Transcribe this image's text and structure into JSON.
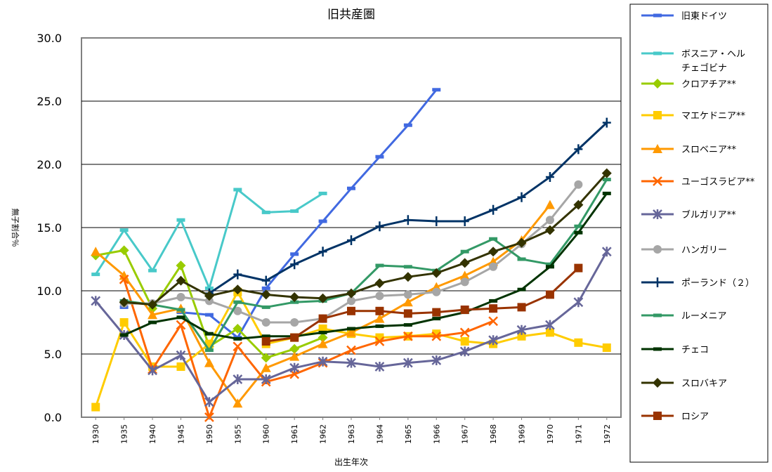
{
  "chart_data": {
    "type": "line",
    "title": "旧共産圏",
    "xlabel": "出生年次",
    "ylabel": "無子割合％",
    "ylim": [
      0,
      30
    ],
    "yticks": [
      "0.0",
      "5.0",
      "10.0",
      "15.0",
      "20.0",
      "25.0",
      "30.0"
    ],
    "categories": [
      "1930",
      "1935",
      "1940",
      "1945",
      "1950",
      "1955",
      "1960",
      "1961",
      "1962",
      "1963",
      "1964",
      "1965",
      "1966",
      "1967",
      "1968",
      "1969",
      "1970",
      "1971",
      "1972"
    ],
    "grid": true,
    "legend_position": "right",
    "series": [
      {
        "name": "旧東ドイツ",
        "color": "#4169e1",
        "marker": "dash",
        "values": [
          null,
          8.7,
          null,
          8.3,
          8.1,
          6.3,
          10.2,
          12.9,
          15.5,
          18.1,
          20.6,
          23.1,
          25.9,
          null,
          null,
          null,
          null,
          null,
          null
        ]
      },
      {
        "name": "ボスニア・ヘルチェゴビナ",
        "color": "#48c9c9",
        "marker": "dash",
        "values": [
          11.3,
          14.8,
          11.6,
          15.6,
          10.2,
          18.0,
          16.2,
          16.3,
          17.7,
          null,
          null,
          null,
          null,
          null,
          null,
          null,
          null,
          null,
          null
        ]
      },
      {
        "name": "クロアチア**",
        "color": "#99cc00",
        "marker": "diamond",
        "values": [
          12.8,
          13.2,
          8.6,
          12.0,
          5.6,
          7.0,
          4.7,
          5.4,
          6.3,
          null,
          null,
          null,
          null,
          null,
          null,
          null,
          null,
          null,
          null
        ]
      },
      {
        "name": "マエケドニア**",
        "color": "#ffcc00",
        "marker": "square",
        "values": [
          0.8,
          7.5,
          4.0,
          4.0,
          5.8,
          9.9,
          5.8,
          6.3,
          7.0,
          6.6,
          6.3,
          6.4,
          6.6,
          6.0,
          5.8,
          6.4,
          6.7,
          5.9,
          5.5
        ]
      },
      {
        "name": "スロベニア**",
        "color": "#ff9900",
        "marker": "triangle",
        "values": [
          13.1,
          11.2,
          8.1,
          8.6,
          4.3,
          1.1,
          3.9,
          4.8,
          5.8,
          6.7,
          7.8,
          9.1,
          10.3,
          11.2,
          12.3,
          14.0,
          16.8,
          null,
          null
        ]
      },
      {
        "name": "ユーゴスラビア**",
        "color": "#ff6600",
        "marker": "x",
        "values": [
          null,
          10.9,
          3.8,
          7.3,
          0.0,
          5.6,
          2.8,
          3.4,
          4.3,
          5.3,
          6.0,
          6.4,
          6.4,
          6.7,
          7.6,
          null,
          null,
          null,
          null
        ]
      },
      {
        "name": "ブルガリア**",
        "color": "#666699",
        "marker": "star",
        "values": [
          9.2,
          6.5,
          3.7,
          4.9,
          1.2,
          3.0,
          3.0,
          3.9,
          4.4,
          4.3,
          4.0,
          4.3,
          4.5,
          5.2,
          6.1,
          6.9,
          7.3,
          9.1,
          13.1
        ]
      },
      {
        "name": "ハンガリー",
        "color": "#a6a6a6",
        "marker": "circle",
        "values": [
          null,
          9.0,
          9.0,
          9.5,
          9.2,
          8.4,
          7.5,
          7.5,
          7.8,
          9.2,
          9.6,
          9.7,
          9.9,
          10.7,
          11.9,
          13.7,
          15.6,
          18.4,
          null
        ]
      },
      {
        "name": "ポーランド（２）",
        "color": "#003366",
        "marker": "plus",
        "values": [
          null,
          null,
          null,
          null,
          9.8,
          11.3,
          10.8,
          12.1,
          13.1,
          14.0,
          15.1,
          15.6,
          15.5,
          15.5,
          16.4,
          17.4,
          19.0,
          21.2,
          23.3
        ]
      },
      {
        "name": "ルーメニア",
        "color": "#339966",
        "marker": "dash",
        "values": [
          null,
          9.2,
          8.9,
          8.5,
          5.3,
          9.1,
          8.7,
          9.1,
          9.2,
          9.8,
          12.0,
          11.9,
          11.6,
          13.1,
          14.1,
          12.5,
          12.1,
          15.1,
          18.8
        ]
      },
      {
        "name": "チェコ",
        "color": "#003300",
        "marker": "dash",
        "values": [
          null,
          6.5,
          7.5,
          7.9,
          6.6,
          6.2,
          6.4,
          6.4,
          6.7,
          7.0,
          7.2,
          7.3,
          7.8,
          8.3,
          9.2,
          10.1,
          11.9,
          14.6,
          17.7
        ]
      },
      {
        "name": "スロバキア",
        "color": "#333300",
        "marker": "diamond",
        "values": [
          null,
          9.1,
          8.9,
          10.8,
          9.6,
          10.1,
          9.7,
          9.5,
          9.4,
          9.8,
          10.6,
          11.1,
          11.4,
          12.2,
          13.1,
          13.8,
          14.8,
          16.8,
          19.3
        ]
      },
      {
        "name": "ロシア",
        "color": "#993300",
        "marker": "square",
        "values": [
          null,
          null,
          null,
          null,
          null,
          null,
          6.0,
          6.3,
          7.8,
          8.4,
          8.4,
          8.2,
          8.3,
          8.5,
          8.6,
          8.7,
          9.7,
          11.8,
          null
        ]
      }
    ]
  }
}
